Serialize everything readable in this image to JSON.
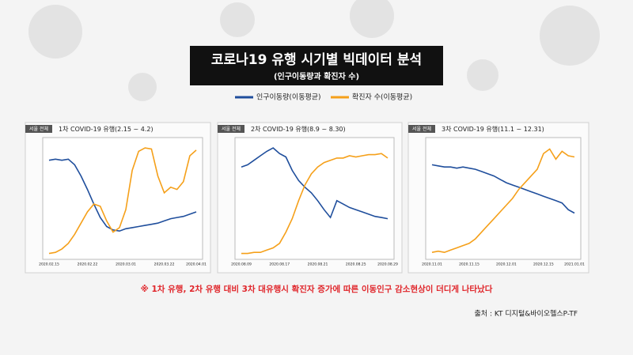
{
  "title": "코로나19 유행 시기별 빅데이터 분석",
  "subtitle": "(인구이동량과 확진자 수)",
  "note": "※ 1차 유행, 2차 유행 대비 3차 대유행시 확진자 증가에 따른 이동인구 감소현상이 더디게 나타났다",
  "source": "출처 : KT 디지털&바이오헬스P-TF",
  "chart_data": [
    {
      "type": "line",
      "tag": "서울 전체",
      "title": "1차 COVID-19 유행(2.15 ~ 4.2)",
      "ylim": [
        0,
        100
      ],
      "categories": [
        "2020.02.15",
        null,
        null,
        null,
        null,
        null,
        "2020.02.22",
        null,
        null,
        null,
        null,
        null,
        "2020.03.01",
        null,
        null,
        null,
        null,
        null,
        "2020.03.22",
        null,
        null,
        null,
        null,
        "2020.04.01"
      ],
      "series": [
        {
          "name": "인구이동량(이동평균)",
          "color": "#1f4e9c",
          "values": [
            84,
            85,
            84,
            85,
            80,
            70,
            58,
            45,
            33,
            25,
            22,
            21,
            23,
            24,
            25,
            26,
            27,
            28,
            30,
            32,
            33,
            34,
            36,
            38
          ]
        },
        {
          "name": "확진자 수(이동평균)",
          "color": "#f5a01a",
          "values": [
            1,
            2,
            5,
            10,
            18,
            28,
            38,
            45,
            43,
            30,
            20,
            24,
            40,
            75,
            92,
            95,
            94,
            70,
            55,
            60,
            58,
            65,
            88,
            93
          ]
        }
      ]
    },
    {
      "type": "line",
      "tag": "서울 전체",
      "title": "2차 COVID-19 유행(8.9 ~ 8.30)",
      "ylim": [
        0,
        100
      ],
      "categories": [
        "2020.08.09",
        null,
        null,
        null,
        null,
        null,
        "2020.08.17",
        null,
        null,
        null,
        null,
        null,
        "2020.08.21",
        null,
        null,
        null,
        null,
        null,
        "2020.08.25",
        null,
        null,
        null,
        null,
        "2020.08.29"
      ],
      "series": [
        {
          "name": "인구이동량(이동평균)",
          "color": "#1f4e9c",
          "values": [
            78,
            80,
            84,
            88,
            92,
            95,
            90,
            87,
            75,
            66,
            60,
            55,
            48,
            40,
            33,
            48,
            45,
            42,
            40,
            38,
            36,
            34,
            33,
            32
          ]
        },
        {
          "name": "확진자 수(이동평균)",
          "color": "#f5a01a",
          "values": [
            1,
            1,
            2,
            2,
            4,
            6,
            10,
            20,
            32,
            48,
            62,
            72,
            78,
            82,
            84,
            86,
            86,
            88,
            87,
            88,
            89,
            89,
            90,
            86
          ]
        }
      ]
    },
    {
      "type": "line",
      "tag": "서울 전체",
      "title": "3차 COVID-19 유행(11.1 ~ 12.31)",
      "ylim": [
        0,
        100
      ],
      "categories": [
        "2020.11.01",
        null,
        null,
        null,
        null,
        null,
        "2020.11.15",
        null,
        null,
        null,
        null,
        null,
        "2020.12.01",
        null,
        null,
        null,
        null,
        null,
        "2020.12.15",
        null,
        null,
        null,
        null,
        "2021.01.01"
      ],
      "series": [
        {
          "name": "인구이동량(이동평균)",
          "color": "#1f4e9c",
          "values": [
            80,
            79,
            78,
            78,
            77,
            78,
            77,
            76,
            74,
            72,
            70,
            67,
            64,
            62,
            60,
            58,
            56,
            54,
            52,
            50,
            48,
            46,
            40,
            37
          ]
        },
        {
          "name": "확진자 수(이동평균)",
          "color": "#f5a01a",
          "values": [
            2,
            3,
            2,
            4,
            6,
            8,
            10,
            14,
            20,
            26,
            32,
            38,
            44,
            50,
            58,
            64,
            70,
            76,
            90,
            94,
            85,
            92,
            88,
            87
          ]
        }
      ]
    }
  ]
}
